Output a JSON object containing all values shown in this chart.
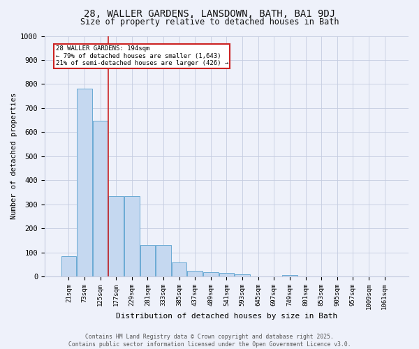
{
  "title_line1": "28, WALLER GARDENS, LANSDOWN, BATH, BA1 9DJ",
  "title_line2": "Size of property relative to detached houses in Bath",
  "xlabel": "Distribution of detached houses by size in Bath",
  "ylabel": "Number of detached properties",
  "bar_labels": [
    "21sqm",
    "73sqm",
    "125sqm",
    "177sqm",
    "229sqm",
    "281sqm",
    "333sqm",
    "385sqm",
    "437sqm",
    "489sqm",
    "541sqm",
    "593sqm",
    "645sqm",
    "697sqm",
    "749sqm",
    "801sqm",
    "853sqm",
    "905sqm",
    "957sqm",
    "1009sqm",
    "1061sqm"
  ],
  "bar_values": [
    83,
    780,
    648,
    335,
    335,
    130,
    130,
    57,
    22,
    18,
    15,
    9,
    0,
    0,
    5,
    0,
    0,
    0,
    0,
    0,
    0
  ],
  "bar_color": "#c5d8f0",
  "bar_edge_color": "#6aaad4",
  "vline_pos": 2.5,
  "vline_color": "#cc2222",
  "annotation_text": "28 WALLER GARDENS: 194sqm\n← 79% of detached houses are smaller (1,643)\n21% of semi-detached houses are larger (426) →",
  "annotation_box_color": "#ffffff",
  "annotation_box_edge": "#cc2222",
  "ylim": [
    0,
    1000
  ],
  "yticks": [
    0,
    100,
    200,
    300,
    400,
    500,
    600,
    700,
    800,
    900,
    1000
  ],
  "background_color": "#eef1fa",
  "plot_bg_color": "#eef1fa",
  "grid_color": "#c5cce0",
  "footer_line1": "Contains HM Land Registry data © Crown copyright and database right 2025.",
  "footer_line2": "Contains public sector information licensed under the Open Government Licence v3.0."
}
